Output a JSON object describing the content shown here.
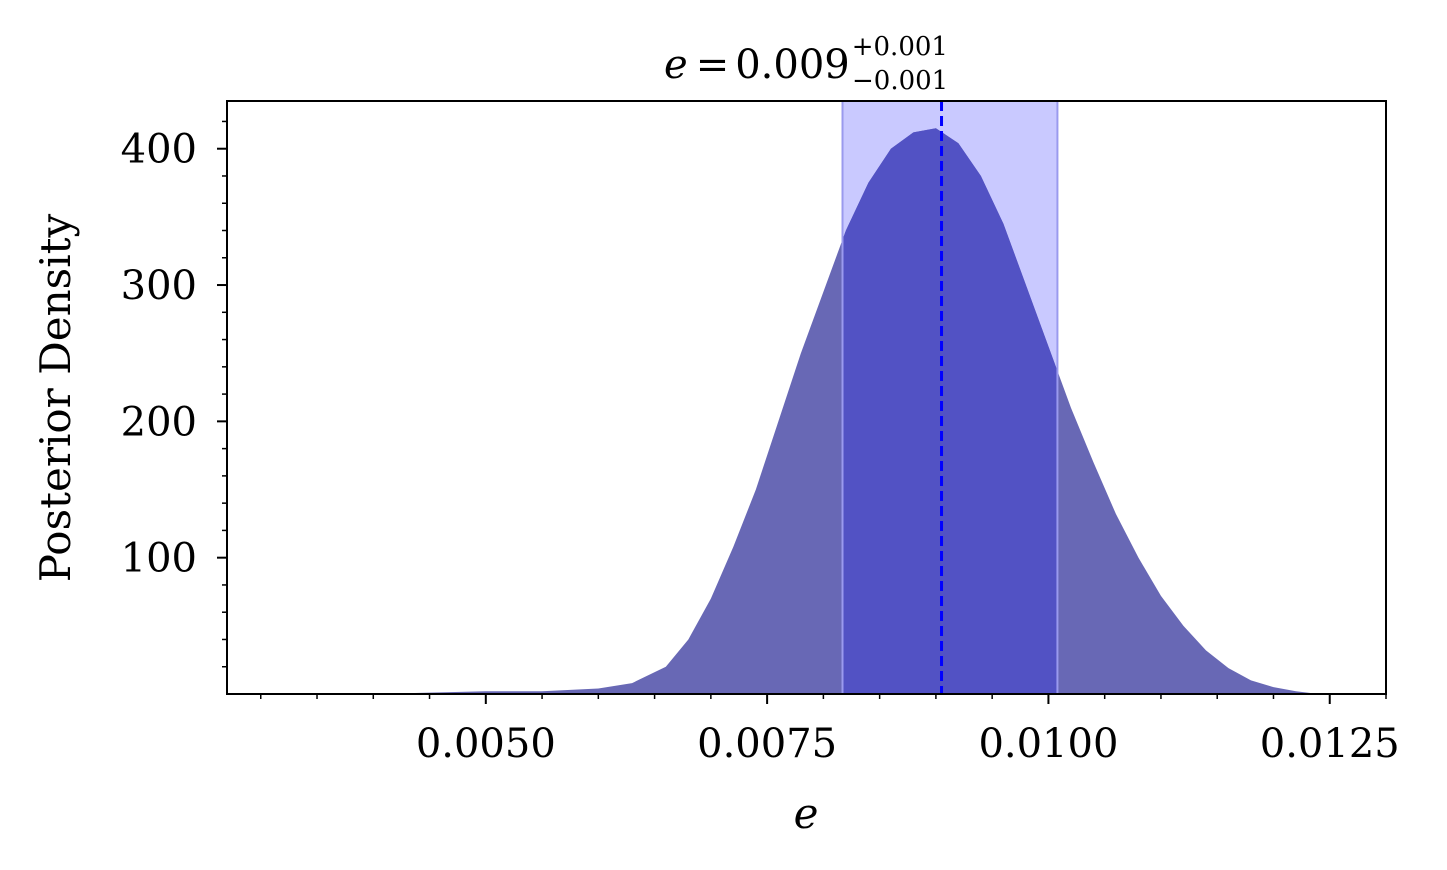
{
  "chart_data": {
    "type": "area",
    "title": {
      "variable": "e",
      "equals": "=",
      "value": "0.009",
      "upper_error": "+0.001",
      "lower_error": "−0.001"
    },
    "xlabel": "e",
    "ylabel": "Posterior Density",
    "xlim": [
      0.0027,
      0.013
    ],
    "ylim": [
      0,
      435
    ],
    "x_ticks": [
      0.005,
      0.0075,
      0.01,
      0.0125
    ],
    "x_tick_labels": [
      "0.0050",
      "0.0075",
      "0.0100",
      "0.0125"
    ],
    "y_ticks": [
      100,
      200,
      300,
      400
    ],
    "y_tick_labels": [
      "100",
      "200",
      "300",
      "400"
    ],
    "grid": false,
    "series": [
      {
        "x": [
          0.004,
          0.0045,
          0.005,
          0.0055,
          0.006,
          0.0063,
          0.0066,
          0.0068,
          0.007,
          0.0072,
          0.0074,
          0.0076,
          0.0078,
          0.008,
          0.0082,
          0.0084,
          0.0086,
          0.0088,
          0.009,
          0.0092,
          0.0094,
          0.0096,
          0.0098,
          0.01,
          0.0102,
          0.0104,
          0.0106,
          0.0108,
          0.011,
          0.0112,
          0.0114,
          0.0116,
          0.0118,
          0.012,
          0.0122,
          0.0124
        ],
        "y": [
          0,
          1,
          2,
          2,
          4,
          8,
          20,
          40,
          70,
          108,
          150,
          200,
          250,
          295,
          340,
          375,
          400,
          412,
          415,
          404,
          380,
          345,
          300,
          255,
          210,
          170,
          132,
          100,
          72,
          50,
          32,
          19,
          10,
          5,
          2,
          0
        ]
      }
    ],
    "median": 0.00905,
    "credible_interval": [
      0.00817,
      0.01008
    ],
    "colors": {
      "fill": "#6868b5",
      "interval_band": "#c9c9ff",
      "interval_fill": "#5252c4",
      "median_line": "#0000ff"
    }
  }
}
